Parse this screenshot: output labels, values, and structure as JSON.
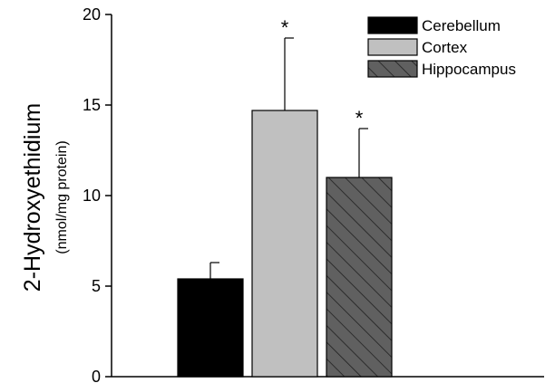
{
  "chart_data": {
    "type": "bar",
    "ylabel": "2-Hydroxyethidium",
    "ylabel_unit": "(nmol/mg protein)",
    "ylim": [
      0,
      20
    ],
    "yticks": [
      "0",
      "5",
      "10",
      "15",
      "20"
    ],
    "legend_position": "top-right",
    "series": [
      {
        "name": "Cerebellum",
        "value": 5.4,
        "error": 0.9,
        "annotation": "",
        "fill": "#000000",
        "hatch": false
      },
      {
        "name": "Cortex",
        "value": 14.7,
        "error": 4.0,
        "annotation": "*",
        "fill": "#c0c0c0",
        "hatch": false
      },
      {
        "name": "Hippocampus",
        "value": 11.0,
        "error": 2.7,
        "annotation": "*",
        "fill": "#606060",
        "hatch": true
      }
    ]
  }
}
